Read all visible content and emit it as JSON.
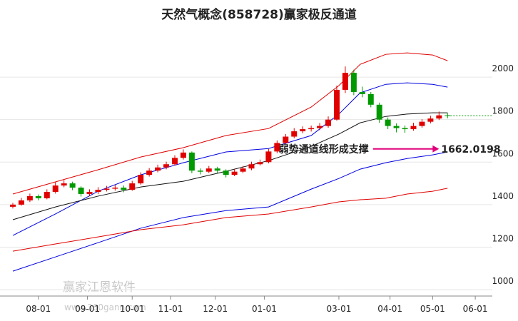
{
  "chart_data": {
    "type": "candlestick",
    "title": "天然气概念(858728)赢家极反通道",
    "watermark": "赢家江恩软件",
    "watermark_url": "www.360gann.com",
    "xlim": [
      0,
      225
    ],
    "ylim": [
      970,
      2262
    ],
    "yticks": [
      1000,
      1200,
      1400,
      1600,
      1800,
      2000
    ],
    "xticks": [
      {
        "value": 12,
        "label": "08-01"
      },
      {
        "value": 35,
        "label": "09-01"
      },
      {
        "value": 56,
        "label": "10-01"
      },
      {
        "value": 74,
        "label": "11-01"
      },
      {
        "value": 95,
        "label": "12-01"
      },
      {
        "value": 118,
        "label": "01-01"
      },
      {
        "value": 153,
        "label": "03-01"
      },
      {
        "value": 177,
        "label": "04-01"
      },
      {
        "value": 197,
        "label": "05-01"
      },
      {
        "value": 217,
        "label": "06-01"
      }
    ],
    "grid": true,
    "up_color": "#e00000",
    "down_color": "#009900",
    "x": [
      0,
      4,
      8,
      12,
      16,
      20,
      24,
      28,
      32,
      36,
      40,
      44,
      48,
      52,
      56,
      60,
      64,
      68,
      72,
      76,
      80,
      84,
      88,
      92,
      96,
      100,
      104,
      108,
      112,
      116,
      120,
      124,
      128,
      132,
      136,
      140,
      144,
      148,
      152,
      156,
      160,
      164,
      168,
      172,
      176,
      180,
      184,
      188,
      192,
      196,
      200,
      204
    ],
    "ohlc": [
      [
        1390,
        1408,
        1382,
        1400
      ],
      [
        1400,
        1432,
        1395,
        1420
      ],
      [
        1420,
        1452,
        1412,
        1440
      ],
      [
        1440,
        1448,
        1420,
        1430
      ],
      [
        1430,
        1472,
        1425,
        1460
      ],
      [
        1460,
        1505,
        1452,
        1490
      ],
      [
        1490,
        1515,
        1482,
        1500
      ],
      [
        1500,
        1508,
        1468,
        1480
      ],
      [
        1480,
        1486,
        1438,
        1450
      ],
      [
        1450,
        1472,
        1442,
        1460
      ],
      [
        1460,
        1482,
        1450,
        1470
      ],
      [
        1470,
        1488,
        1462,
        1475
      ],
      [
        1475,
        1492,
        1466,
        1480
      ],
      [
        1480,
        1490,
        1458,
        1470
      ],
      [
        1470,
        1512,
        1465,
        1500
      ],
      [
        1500,
        1552,
        1494,
        1540
      ],
      [
        1540,
        1572,
        1532,
        1560
      ],
      [
        1560,
        1588,
        1552,
        1575
      ],
      [
        1575,
        1602,
        1566,
        1590
      ],
      [
        1590,
        1632,
        1584,
        1620
      ],
      [
        1620,
        1660,
        1612,
        1645
      ],
      [
        1645,
        1650,
        1548,
        1560
      ],
      [
        1560,
        1570,
        1542,
        1555
      ],
      [
        1555,
        1582,
        1548,
        1570
      ],
      [
        1570,
        1578,
        1548,
        1560
      ],
      [
        1560,
        1566,
        1528,
        1540
      ],
      [
        1540,
        1568,
        1534,
        1555
      ],
      [
        1555,
        1582,
        1548,
        1570
      ],
      [
        1570,
        1602,
        1562,
        1590
      ],
      [
        1590,
        1612,
        1584,
        1600
      ],
      [
        1600,
        1662,
        1594,
        1650
      ],
      [
        1650,
        1702,
        1642,
        1690
      ],
      [
        1690,
        1732,
        1684,
        1720
      ],
      [
        1720,
        1760,
        1712,
        1745
      ],
      [
        1745,
        1768,
        1736,
        1755
      ],
      [
        1755,
        1772,
        1744,
        1760
      ],
      [
        1760,
        1784,
        1750,
        1770
      ],
      [
        1770,
        1815,
        1762,
        1800
      ],
      [
        1800,
        1960,
        1795,
        1940
      ],
      [
        1940,
        2050,
        1925,
        2020
      ],
      [
        2020,
        2035,
        1915,
        1930
      ],
      [
        1930,
        1955,
        1905,
        1920
      ],
      [
        1920,
        1930,
        1858,
        1870
      ],
      [
        1870,
        1880,
        1785,
        1800
      ],
      [
        1800,
        1810,
        1755,
        1770
      ],
      [
        1770,
        1782,
        1740,
        1760
      ],
      [
        1760,
        1772,
        1738,
        1755
      ],
      [
        1755,
        1785,
        1748,
        1770
      ],
      [
        1770,
        1802,
        1762,
        1790
      ],
      [
        1790,
        1818,
        1782,
        1805
      ],
      [
        1805,
        1838,
        1798,
        1820
      ],
      [
        1820,
        1832,
        1806,
        1818
      ]
    ],
    "band_x": [
      0,
      20,
      40,
      60,
      80,
      100,
      120,
      140,
      153,
      163,
      175,
      185,
      197,
      204
    ],
    "bands": [
      {
        "color": "#e00000",
        "values": [
          1450,
          1507,
          1564,
          1624,
          1668,
          1725,
          1758,
          1859,
          1960,
          2060,
          2107,
          2114,
          2104,
          2077
        ]
      },
      {
        "color": "#0000e0",
        "values": [
          1255,
          1356,
          1463,
          1540,
          1597,
          1648,
          1664,
          1725,
          1826,
          1926,
          1966,
          1973,
          1966,
          1953
        ]
      },
      {
        "color": "#111111",
        "values": [
          1329,
          1389,
          1440,
          1483,
          1510,
          1557,
          1607,
          1674,
          1732,
          1785,
          1815,
          1826,
          1832,
          1832
        ]
      },
      {
        "color": "#0000e0",
        "values": [
          1087,
          1154,
          1221,
          1289,
          1339,
          1372,
          1389,
          1473,
          1523,
          1567,
          1597,
          1617,
          1634,
          1648
        ]
      },
      {
        "color": "#e00000",
        "values": [
          1181,
          1215,
          1248,
          1282,
          1305,
          1339,
          1356,
          1389,
          1413,
          1423,
          1430,
          1450,
          1463,
          1477
        ]
      }
    ],
    "support": {
      "text": "弱势通道线形成支撑",
      "value": 1662.0198,
      "x_from": 169,
      "x_to": 200
    }
  }
}
